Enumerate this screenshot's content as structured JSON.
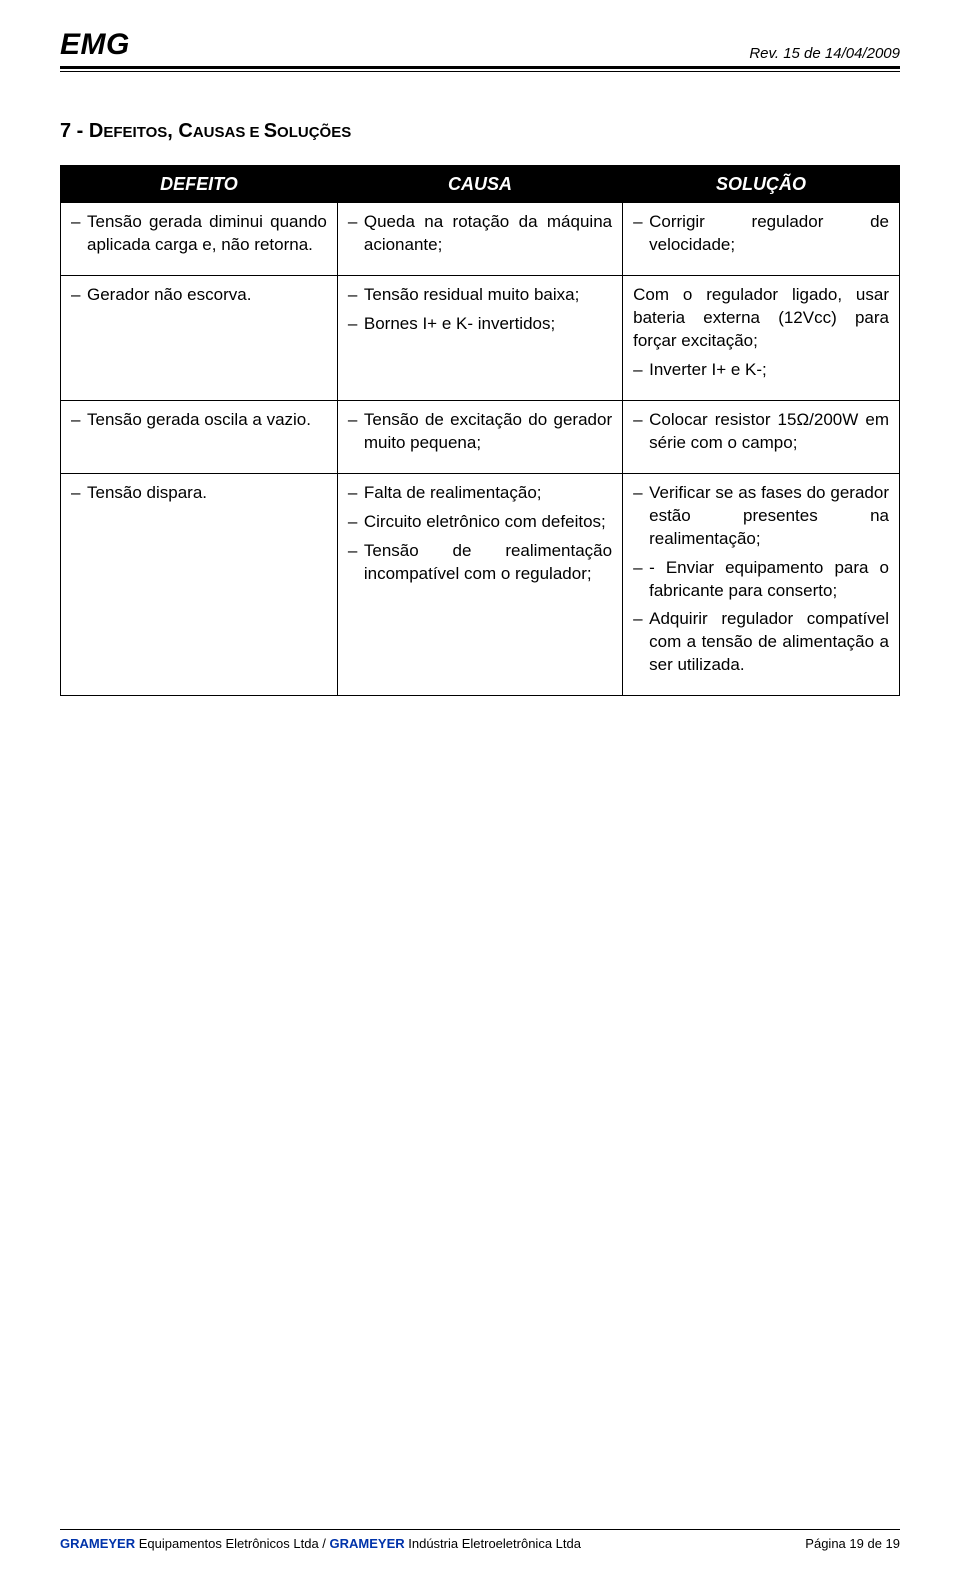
{
  "header": {
    "brand": "EMG",
    "rev": "Rev. 15 de 14/04/2009"
  },
  "section": {
    "num": "7 - ",
    "t1": "D",
    "t2": "EFEITOS",
    "t3": ", C",
    "t4": "AUSAS E ",
    "t5": "S",
    "t6": "OLUÇÕES"
  },
  "table": {
    "head": {
      "c1": "DEFEITO",
      "c2": "CAUSA",
      "c3": "SOLUÇÃO"
    },
    "rows": {
      "r1": {
        "def1": "Tensão gerada diminui quando aplicada carga e, não retorna.",
        "cau1": "Queda na rotação da máquina acionante;",
        "sol1": "Corrigir regulador de velocidade;"
      },
      "r2": {
        "def1": "Gerador não escorva.",
        "cau1": "Tensão residual muito baixa;",
        "cau2": "Bornes I+ e K- invertidos;",
        "sol_intro": "Com o regulador ligado, usar bateria externa (12Vcc) para forçar excitação;",
        "sol2": "Inverter I+ e K-;"
      },
      "r3": {
        "def1": "Tensão gerada oscila a vazio.",
        "cau1": "Tensão de excitação do gerador muito pequena;",
        "sol1": "Colocar resistor 15Ω/200W em série com o campo;"
      },
      "r4": {
        "def1": "Tensão dispara.",
        "cau1": "Falta de realimentação;",
        "cau2": "Circuito eletrônico com defeitos;",
        "cau3": "Tensão de realimentação incompatível com o regulador;",
        "sol1": "Verificar se as fases do gerador estão presentes na realimentação;",
        "sol2": "- Enviar equipamento para o fabricante para conserto;",
        "sol3": "Adquirir regulador compatível com a tensão de alimentação a ser utilizada."
      }
    }
  },
  "footer": {
    "company1_b": "GRAMEYER",
    "company1_r": " Equipamentos Eletrônicos Ltda / ",
    "company2_b": "GRAMEYER",
    "company2_r": " Indústria Eletroeletrônica Ltda",
    "page": "Página 19 de 19"
  }
}
